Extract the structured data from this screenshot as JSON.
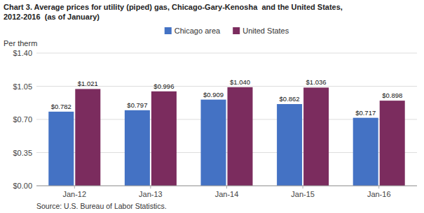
{
  "chart_data": {
    "type": "bar",
    "title": "Chart 3. Average prices for utility (piped) gas, Chicago-Gary-Kenosha  and the United States,",
    "subtitle": "2012-2016  (as of January)",
    "ylabel": "Per therm",
    "source": "Source: U.S. Bureau of Labor Statistics.",
    "categories": [
      "Jan-12",
      "Jan-13",
      "Jan-14",
      "Jan-15",
      "Jan-16"
    ],
    "series": [
      {
        "name": "Chicago area",
        "color": "#4472C4",
        "values": [
          0.782,
          0.797,
          0.909,
          0.862,
          0.717
        ],
        "value_labels": [
          "$0.782",
          "$0.797",
          "$0.909",
          "$0.862",
          "$0.717"
        ]
      },
      {
        "name": "United States",
        "color": "#7B2C5E",
        "values": [
          1.021,
          0.996,
          1.04,
          1.036,
          0.898
        ],
        "value_labels": [
          "$1.021",
          "$0.996",
          "$1.040",
          "$1.036",
          "$0.898"
        ]
      }
    ],
    "ylim": [
      0,
      1.4
    ],
    "yticks": [
      {
        "value": 0.0,
        "label": "$0.00"
      },
      {
        "value": 0.35,
        "label": "$0.35"
      },
      {
        "value": 0.7,
        "label": "$0.70"
      },
      {
        "value": 1.05,
        "label": "$1.05"
      },
      {
        "value": 1.4,
        "label": "$1.40"
      }
    ],
    "grid": true,
    "legend": "top",
    "data_labels": true
  }
}
